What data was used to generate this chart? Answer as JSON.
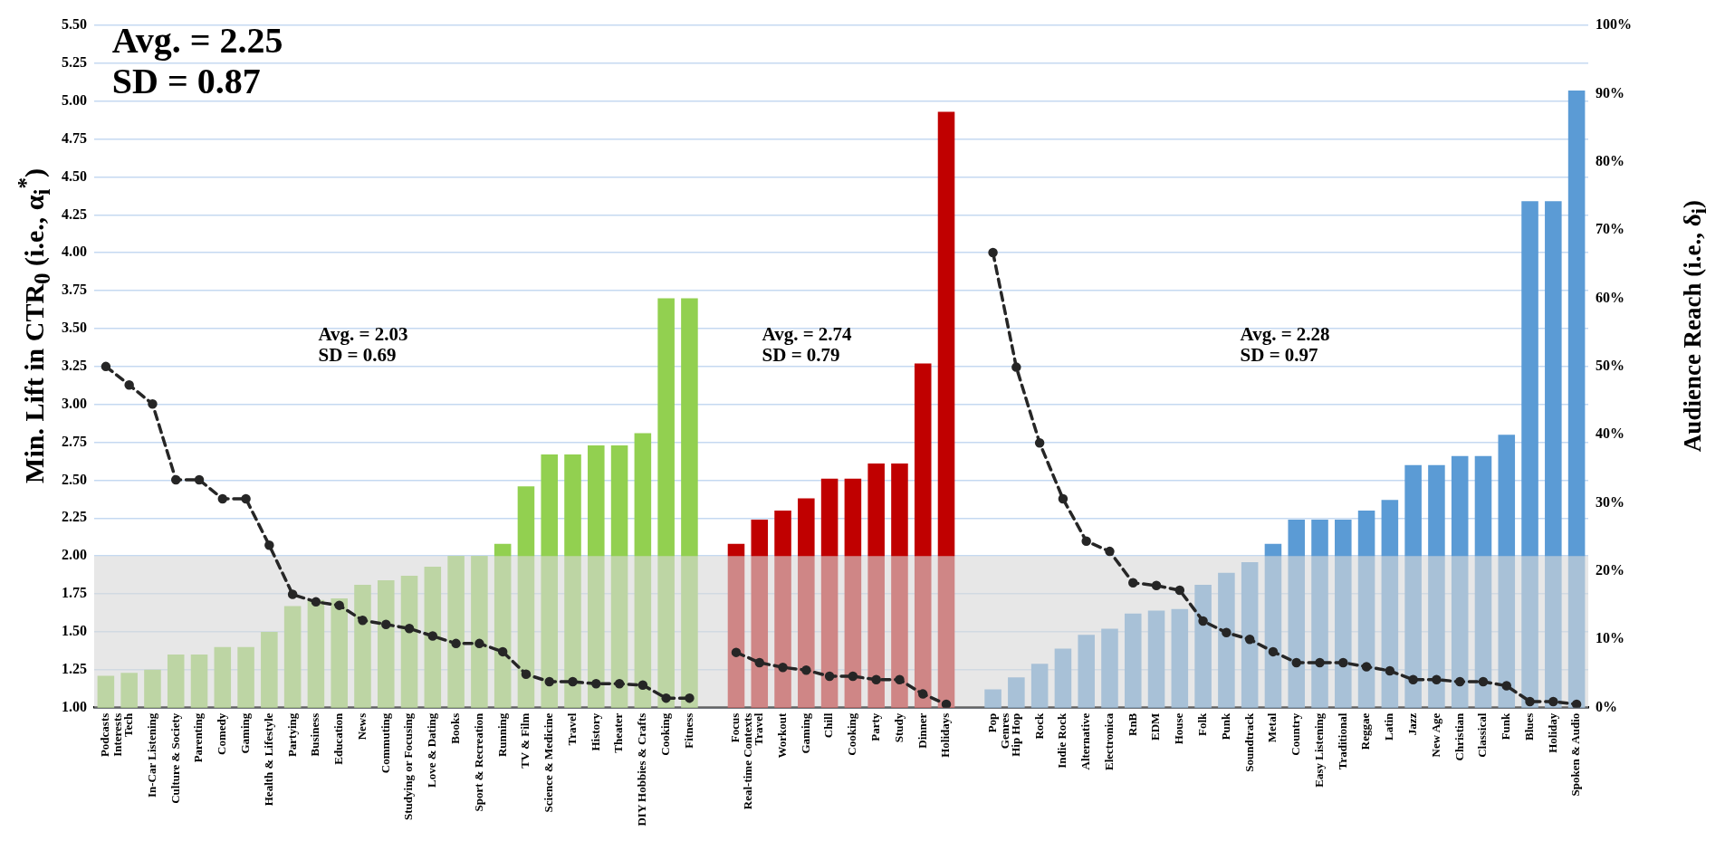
{
  "chart_data": {
    "type": "bar",
    "ylabel": "Min. Lift in CTR$_{0}$ (i.e., α$_{i}$$^{*}$)",
    "y2label": "Audience Reach (i.e., δ$_{i}$)",
    "annotations": [
      "Avg. = 2.25\nSD = 0.87",
      "Avg. = 2.03\nSD = 0.69",
      "Avg. = 2.74\nSD = 0.79",
      "Avg. = 2.28\nSD = 0.97"
    ],
    "categories": [
      "Podcasts\nInterests",
      "Tech",
      "In-Car Listening",
      "Culture & Society",
      "Parenting",
      "Comedy",
      "Gaming",
      "Health & Lifestyle",
      "Partying",
      "Business",
      "Education",
      "News",
      "Commuting",
      "Studying or Focusing",
      "Love & Dating",
      "Books",
      "Sport & Recreation",
      "Running",
      "TV & Film",
      "Science & Medicine",
      "Travel",
      "History",
      "Theater",
      "DIY Hobbies & Crafts",
      "Cooking",
      "Fitness",
      null,
      "Focus\nReal-time Contexts",
      "Travel",
      "Workout",
      "Gaming",
      "Chill",
      "Cooking",
      "Party",
      "Study",
      "Dinner",
      "Holidays",
      null,
      "Pop\nGenres",
      "Hip Hop",
      "Rock",
      "Indie Rock",
      "Alternative",
      "Electronica",
      "RnB",
      "EDM",
      "House",
      "Folk",
      "Punk",
      "Soundtrack",
      "Metal",
      "Country",
      "Easy Listening",
      "Traditional",
      "Reggae",
      "Latin",
      "Jazz",
      "New Age",
      "Christian",
      "Classical",
      "Funk",
      "Blues",
      "Holiday",
      "Spoken & Audio"
    ],
    "series": [
      {
        "values": [
          1.21,
          1.23,
          1.25,
          1.35,
          1.35,
          1.4,
          1.4,
          1.5,
          1.67,
          1.71,
          1.72,
          1.81,
          1.84,
          1.87,
          1.93,
          2.0,
          2.0,
          2.08,
          2.46,
          2.67,
          2.67,
          2.73,
          2.73,
          2.81,
          3.7,
          3.7,
          null,
          2.08,
          2.24,
          2.3,
          2.38,
          2.51,
          2.51,
          2.61,
          2.61,
          3.27,
          4.93,
          null,
          1.12,
          1.2,
          1.29,
          1.39,
          1.48,
          1.52,
          1.62,
          1.64,
          1.65,
          1.81,
          1.89,
          1.96,
          2.08,
          2.24,
          2.24,
          2.24,
          2.3,
          2.37,
          2.6,
          2.6,
          2.66,
          2.66,
          2.8,
          4.34,
          4.34,
          5.07
        ],
        "colors": [
          "#92d050",
          "#92d050",
          "#92d050",
          "#92d050",
          "#92d050",
          "#92d050",
          "#92d050",
          "#92d050",
          "#92d050",
          "#92d050",
          "#92d050",
          "#92d050",
          "#92d050",
          "#92d050",
          "#92d050",
          "#92d050",
          "#92d050",
          "#92d050",
          "#92d050",
          "#92d050",
          "#92d050",
          "#92d050",
          "#92d050",
          "#92d050",
          "#92d050",
          "#92d050",
          null,
          "#c00000",
          "#c00000",
          "#c00000",
          "#c00000",
          "#c00000",
          "#c00000",
          "#c00000",
          "#c00000",
          "#c00000",
          "#c00000",
          null,
          "#5b9bd5",
          "#5b9bd5",
          "#5b9bd5",
          "#5b9bd5",
          "#5b9bd5",
          "#5b9bd5",
          "#5b9bd5",
          "#5b9bd5",
          "#5b9bd5",
          "#5b9bd5",
          "#5b9bd5",
          "#5b9bd5",
          "#5b9bd5",
          "#5b9bd5",
          "#5b9bd5",
          "#5b9bd5",
          "#5b9bd5",
          "#5b9bd5",
          "#5b9bd5",
          "#5b9bd5",
          "#5b9bd5",
          "#5b9bd5",
          "#5b9bd5",
          "#5b9bd5",
          "#5b9bd5",
          "#5b9bd5"
        ]
      },
      {
        "type": "line",
        "axis": "y2",
        "color": "#262626",
        "values": [
          50,
          47.3,
          44.5,
          33.4,
          33.4,
          30.6,
          30.6,
          23.8,
          16.6,
          15.5,
          15.0,
          12.8,
          12.2,
          11.6,
          10.5,
          9.4,
          9.4,
          8.2,
          4.9,
          3.8,
          3.8,
          3.5,
          3.5,
          3.3,
          1.4,
          1.4,
          null,
          8.1,
          6.6,
          5.9,
          5.5,
          4.6,
          4.6,
          4.1,
          4.1,
          2.0,
          0.5,
          null,
          66.7,
          49.9,
          38.8,
          30.6,
          24.4,
          22.9,
          18.3,
          17.9,
          17.2,
          12.7,
          11.0,
          10.0,
          8.2,
          6.6,
          6.6,
          6.6,
          6.0,
          5.4,
          4.1,
          4.1,
          3.8,
          3.8,
          3.2,
          0.9,
          0.9,
          0.5
        ]
      }
    ],
    "ylim": [
      1,
      5.5
    ],
    "yticks": [
      {
        "value": 1,
        "label": "1.00"
      },
      {
        "value": 1.25,
        "label": "1.25"
      },
      {
        "value": 1.5,
        "label": "1.50"
      },
      {
        "value": 1.75,
        "label": "1.75"
      },
      {
        "value": 2,
        "label": "2.00"
      },
      {
        "value": 2.25,
        "label": "2.25"
      },
      {
        "value": 2.5,
        "label": "2.50"
      },
      {
        "value": 2.75,
        "label": "2.75"
      },
      {
        "value": 3,
        "label": "3.00"
      },
      {
        "value": 3.25,
        "label": "3.25"
      },
      {
        "value": 3.5,
        "label": "3.50"
      },
      {
        "value": 3.75,
        "label": "3.75"
      },
      {
        "value": 4,
        "label": "4.00"
      },
      {
        "value": 4.25,
        "label": "4.25"
      },
      {
        "value": 4.5,
        "label": "4.50"
      },
      {
        "value": 4.75,
        "label": "4.75"
      },
      {
        "value": 5,
        "label": "5.00"
      },
      {
        "value": 5.25,
        "label": "5.25"
      },
      {
        "value": 5.5,
        "label": "5.50"
      }
    ],
    "y2lim": [
      0,
      100
    ],
    "y2ticks": [
      {
        "value": 0,
        "label": "0%"
      },
      {
        "value": 10,
        "label": "10%"
      },
      {
        "value": 20,
        "label": "20%"
      },
      {
        "value": 30,
        "label": "30%"
      },
      {
        "value": 40,
        "label": "40%"
      },
      {
        "value": 50,
        "label": "50%"
      },
      {
        "value": 60,
        "label": "60%"
      },
      {
        "value": 70,
        "label": "70%"
      },
      {
        "value": 80,
        "label": "80%"
      },
      {
        "value": 90,
        "label": "90%"
      },
      {
        "value": 100,
        "label": "100%"
      }
    ],
    "bands": [
      {
        "axis": "y",
        "from": 1,
        "to": 2,
        "color": "#d9d9d9"
      }
    ],
    "grid": "y",
    "marker": "circle",
    "line_style": "dashed"
  }
}
